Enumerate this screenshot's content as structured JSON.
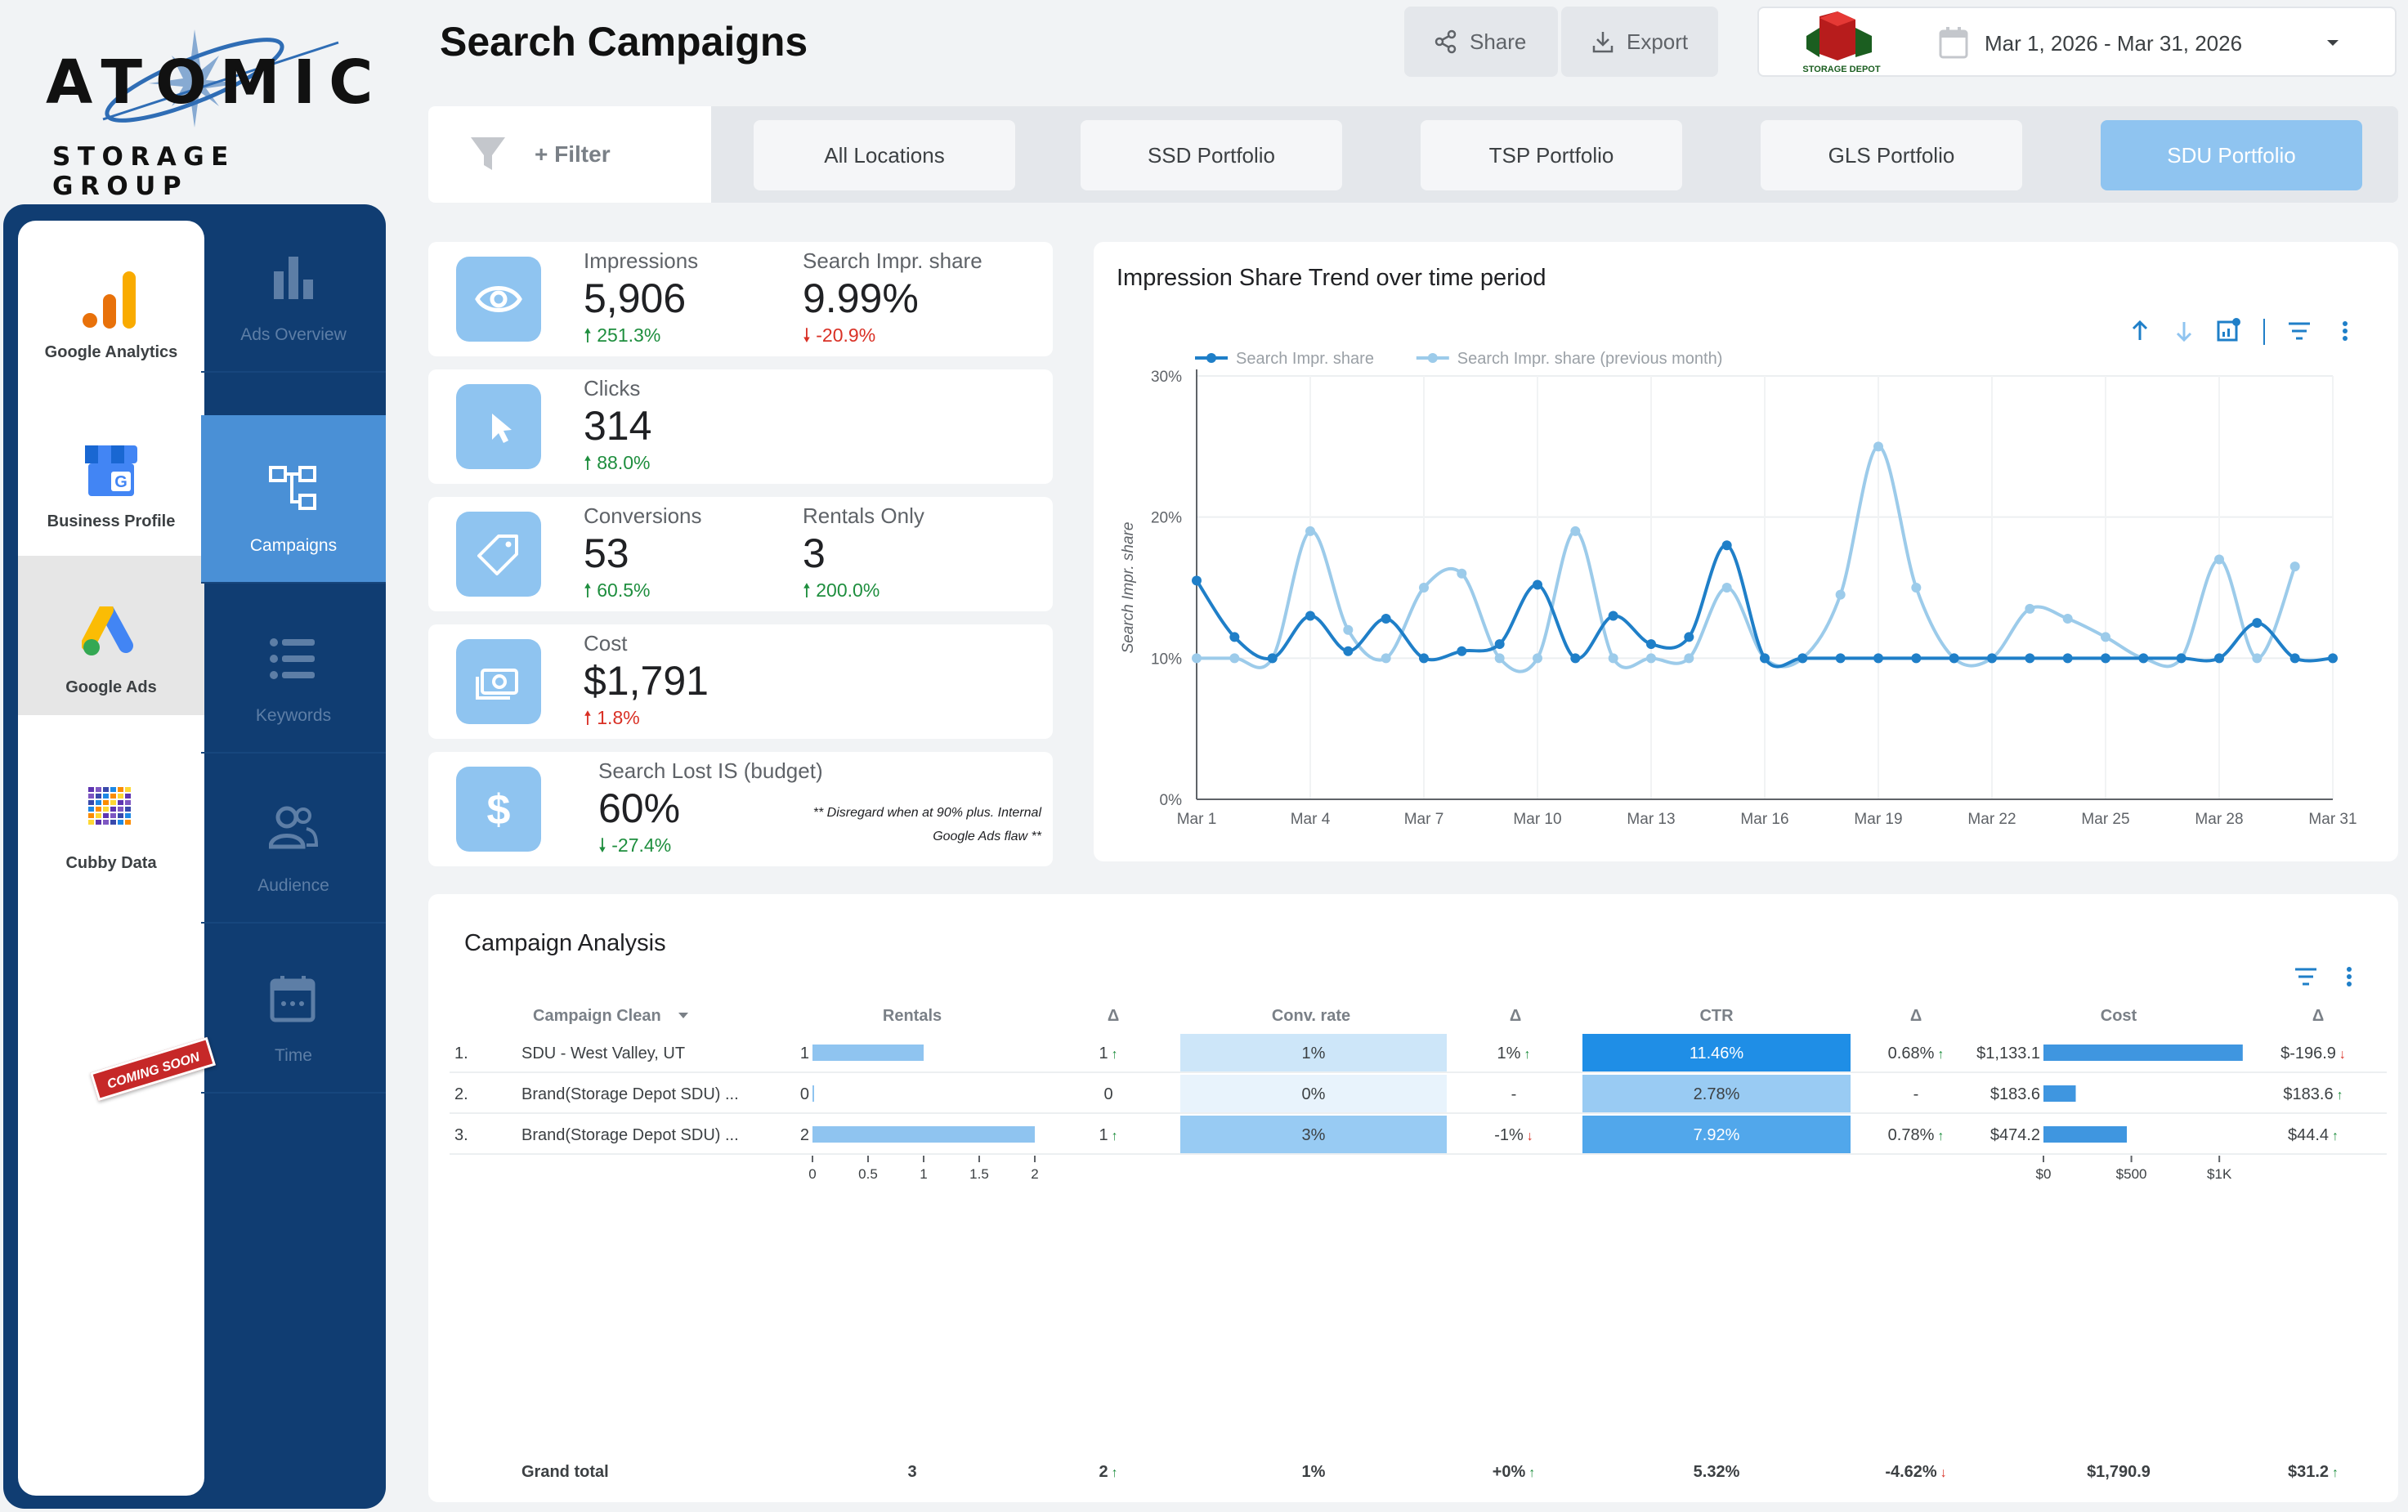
{
  "brand": {
    "top": "ATOMIC",
    "bottom": "STORAGE GROUP"
  },
  "nav": {
    "sources": [
      {
        "label": "Google Analytics",
        "icon": "analytics-icon"
      },
      {
        "label": "Business Profile",
        "icon": "business-profile-icon"
      },
      {
        "label": "Google Ads",
        "icon": "google-ads-icon",
        "active": true
      },
      {
        "label": "Cubby Data",
        "icon": "cubby-grid-icon",
        "badge": "COMING SOON"
      }
    ],
    "sections": [
      {
        "label": "Ads Overview",
        "icon": "bar-chart-icon"
      },
      {
        "label": "Campaigns",
        "icon": "campaigns-tree-icon",
        "active": true
      },
      {
        "label": "Keywords",
        "icon": "list-icon"
      },
      {
        "label": "Audience",
        "icon": "audience-icon"
      },
      {
        "label": "Time",
        "icon": "calendar-icon"
      }
    ]
  },
  "header": {
    "title": "Search Campaigns",
    "share_label": "Share",
    "export_label": "Export",
    "client_logo_text": "STORAGE DEPOT",
    "date_range": "Mar 1, 2026 - Mar 31, 2026"
  },
  "filter_bar": {
    "filter_label": "+ Filter",
    "portfolios": [
      "All Locations",
      "SSD Portfolio",
      "TSP Portfolio",
      "GLS Portfolio",
      "SDU Portfolio"
    ],
    "active_portfolio": "SDU Portfolio"
  },
  "kpis": {
    "impressions": {
      "label": "Impressions",
      "value": "5,906",
      "delta": "251.3%",
      "dir": "up"
    },
    "search_impr_share": {
      "label": "Search Impr. share",
      "value": "9.99%",
      "delta": "-20.9%",
      "dir": "down"
    },
    "clicks": {
      "label": "Clicks",
      "value": "314",
      "delta": "88.0%",
      "dir": "up"
    },
    "conversions": {
      "label": "Conversions",
      "value": "53",
      "delta": "60.5%",
      "dir": "up"
    },
    "rentals_only": {
      "label": "Rentals Only",
      "value": "3",
      "delta": "200.0%",
      "dir": "up"
    },
    "cost": {
      "label": "Cost",
      "value": "$1,791",
      "delta": "1.8%",
      "dir": "up-bad"
    },
    "lost_is": {
      "label": "Search Lost IS (budget)",
      "value": "60%",
      "delta": "-27.4%",
      "dir": "down-good",
      "note_line1": "** Disregard when at 90% plus. Internal",
      "note_line2": "Google Ads flaw **"
    }
  },
  "chart_data": {
    "type": "line",
    "title": "Impression Share Trend over time period",
    "ylabel": "Search Impr. share",
    "ylim": [
      0,
      30
    ],
    "yticks": [
      "0%",
      "10%",
      "20%",
      "30%"
    ],
    "xticks": [
      "Mar 1",
      "Mar 4",
      "Mar 7",
      "Mar 10",
      "Mar 13",
      "Mar 16",
      "Mar 19",
      "Mar 22",
      "Mar 25",
      "Mar 28",
      "Mar 31"
    ],
    "x": [
      1,
      2,
      3,
      4,
      5,
      6,
      7,
      8,
      9,
      10,
      11,
      12,
      13,
      14,
      15,
      16,
      17,
      18,
      19,
      20,
      21,
      22,
      23,
      24,
      25,
      26,
      27,
      28,
      29,
      30,
      31
    ],
    "legend_position": "top-left",
    "series": [
      {
        "name": "Search Impr. share",
        "color": "#1f7fc8",
        "values": [
          15.5,
          11.5,
          10,
          13,
          10.5,
          12.8,
          10,
          10.5,
          11,
          15.2,
          10,
          13,
          11,
          11.5,
          18,
          10,
          10,
          10,
          10,
          10,
          10,
          10,
          10,
          10,
          10,
          10,
          10,
          10,
          12.5,
          10,
          10
        ]
      },
      {
        "name": "Search Impr. share (previous month)",
        "color": "#9ccbea",
        "values": [
          10,
          10,
          10,
          19,
          12,
          10,
          15,
          16,
          10,
          10,
          19,
          10,
          10,
          10,
          15,
          10,
          10,
          14.5,
          25,
          15,
          10,
          10,
          13.5,
          12.8,
          11.5,
          10,
          10,
          17,
          10,
          16.5,
          null
        ]
      }
    ]
  },
  "table": {
    "title": "Campaign Analysis",
    "columns": [
      "Campaign Clean",
      "Rentals",
      "Δ",
      "Conv. rate",
      "Δ",
      "CTR",
      "Δ",
      "Cost",
      "Δ"
    ],
    "rows": [
      {
        "num": "1.",
        "name": "SDU - West Valley, UT",
        "rentals": 1,
        "rentals_label": "1",
        "rentals_delta": "1",
        "rentals_delta_dir": "up",
        "conv_rate": "1%",
        "conv_rate_level": 1,
        "conv_delta": "1%",
        "conv_delta_dir": "up",
        "ctr": "11.46%",
        "ctr_level": 11.46,
        "ctr_delta": "0.68%",
        "ctr_delta_dir": "up",
        "cost": 1133.1,
        "cost_label": "$1,133.1",
        "cost_delta": "$-196.9",
        "cost_delta_dir": "down"
      },
      {
        "num": "2.",
        "name": "Brand(Storage Depot SDU) ...",
        "rentals": 0,
        "rentals_label": "0",
        "rentals_delta": "0",
        "rentals_delta_dir": "",
        "conv_rate": "0%",
        "conv_rate_level": 0,
        "conv_delta": "-",
        "conv_delta_dir": "",
        "ctr": "2.78%",
        "ctr_level": 2.78,
        "ctr_delta": "-",
        "ctr_delta_dir": "",
        "cost": 183.6,
        "cost_label": "$183.6",
        "cost_delta": "$183.6",
        "cost_delta_dir": "up"
      },
      {
        "num": "3.",
        "name": "Brand(Storage Depot SDU) ...",
        "rentals": 2,
        "rentals_label": "2",
        "rentals_delta": "1",
        "rentals_delta_dir": "up",
        "conv_rate": "3%",
        "conv_rate_level": 3,
        "conv_delta": "-1%",
        "conv_delta_dir": "down",
        "ctr": "7.92%",
        "ctr_level": 7.92,
        "ctr_delta": "0.78%",
        "ctr_delta_dir": "up",
        "cost": 474.2,
        "cost_label": "$474.2",
        "cost_delta": "$44.4",
        "cost_delta_dir": "up"
      }
    ],
    "rentals_axis": [
      "0",
      "0.5",
      "1",
      "1.5",
      "2"
    ],
    "cost_axis": [
      "$0",
      "$500",
      "$1K"
    ],
    "grand_total": {
      "label": "Grand total",
      "rentals": "3",
      "rentals_delta": "2",
      "conv_rate": "1%",
      "conv_delta": "+0%",
      "ctr": "5.32%",
      "ctr_delta": "-4.62%",
      "cost": "$1,790.9",
      "cost_delta": "$31.2"
    }
  }
}
